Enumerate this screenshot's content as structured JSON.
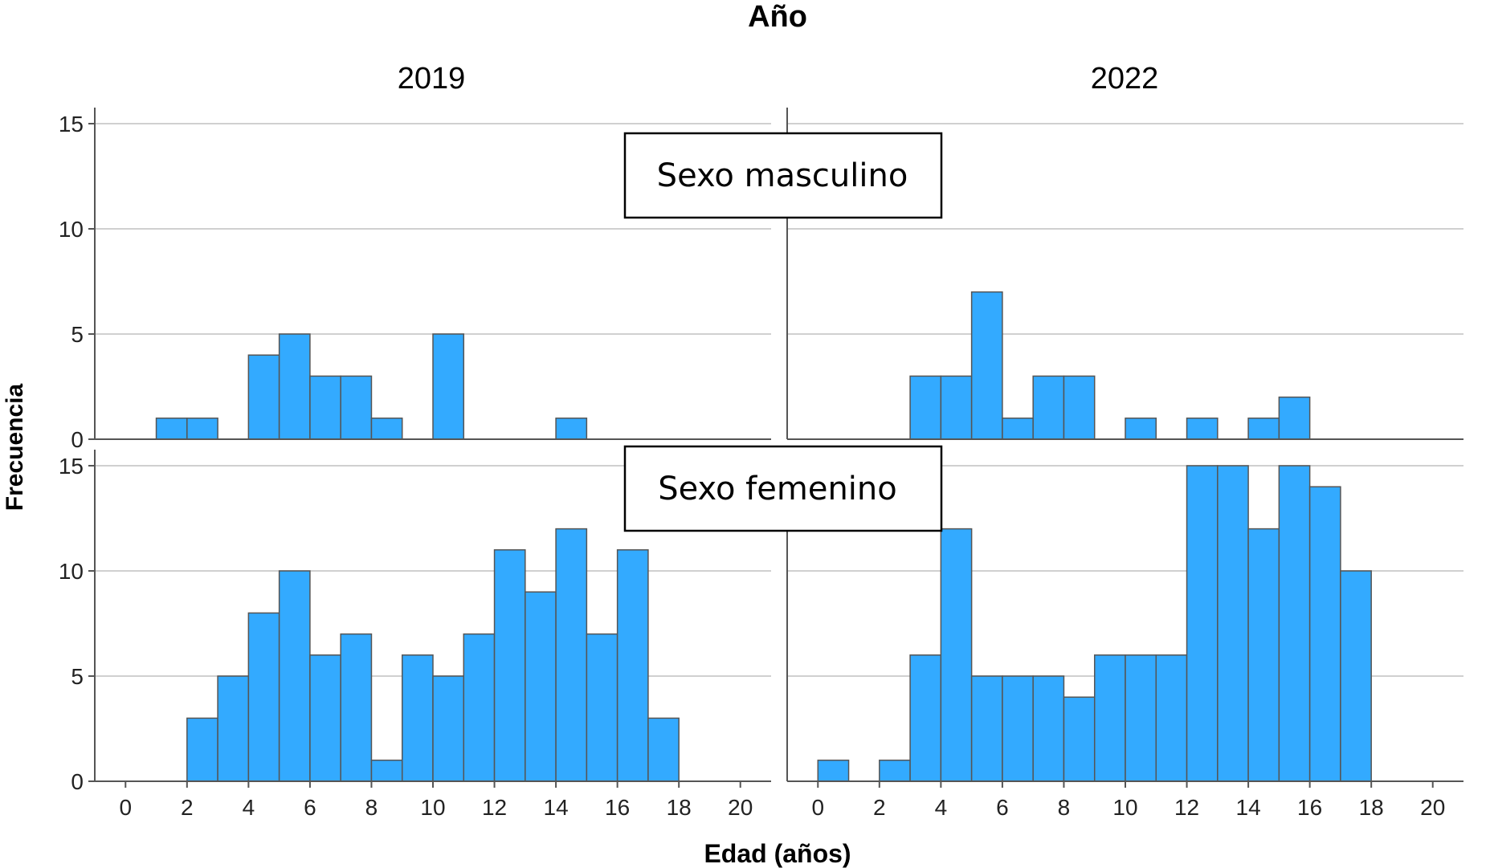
{
  "chart_data": {
    "type": "bar",
    "title": "Año",
    "xlabel": "Edad (años)",
    "ylabel": "Frecuencia",
    "column_labels": [
      "2019",
      "2022"
    ],
    "row_labels": [
      "Sexo masculino",
      "Sexo femenino"
    ],
    "x_range": [
      -1,
      21
    ],
    "x_ticks": [
      0,
      2,
      4,
      6,
      8,
      10,
      12,
      14,
      16,
      18,
      20
    ],
    "y_range": [
      0,
      15
    ],
    "y_ticks": [
      0,
      5,
      10,
      15
    ],
    "bin_width": 1,
    "grid": true,
    "bar_color": "#33aaff",
    "panels": [
      {
        "row": 0,
        "col": 0,
        "x": [
          1,
          2,
          4,
          5,
          6,
          7,
          8,
          10,
          14
        ],
        "values": [
          1,
          1,
          4,
          5,
          3,
          3,
          1,
          5,
          1
        ]
      },
      {
        "row": 0,
        "col": 1,
        "x": [
          3,
          4,
          5,
          6,
          7,
          8,
          10,
          12,
          14,
          15
        ],
        "values": [
          3,
          3,
          7,
          1,
          3,
          3,
          1,
          1,
          1,
          2
        ]
      },
      {
        "row": 1,
        "col": 0,
        "x": [
          2,
          3,
          4,
          5,
          6,
          7,
          8,
          9,
          10,
          11,
          12,
          13,
          14,
          15,
          16,
          17
        ],
        "values": [
          3,
          5,
          8,
          10,
          6,
          7,
          1,
          6,
          5,
          7,
          11,
          9,
          12,
          7,
          11,
          3
        ]
      },
      {
        "row": 1,
        "col": 1,
        "x": [
          0,
          2,
          3,
          4,
          5,
          6,
          7,
          8,
          9,
          10,
          11,
          12,
          13,
          14,
          15,
          16,
          17
        ],
        "values": [
          1,
          1,
          6,
          12,
          5,
          5,
          5,
          4,
          6,
          6,
          6,
          15,
          15,
          12,
          15,
          14,
          10
        ]
      }
    ]
  }
}
